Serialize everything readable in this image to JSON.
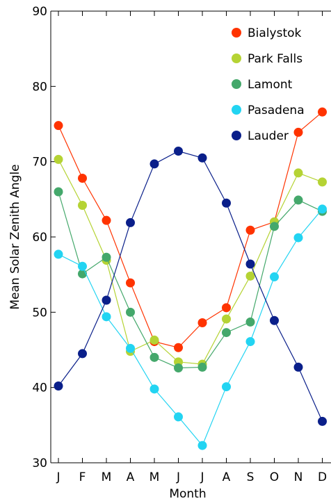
{
  "chart_data": {
    "type": "line",
    "title": "",
    "xlabel": "Month",
    "ylabel": "Mean Solar Zenith Angle",
    "categories": [
      "J",
      "F",
      "M",
      "A",
      "M",
      "J",
      "J",
      "A",
      "S",
      "O",
      "N",
      "D"
    ],
    "ylim": [
      30,
      90
    ],
    "yticks": [
      "30",
      "40",
      "50",
      "60",
      "70",
      "80",
      "90"
    ],
    "grid": false,
    "legend_position": "top-right",
    "series": [
      {
        "name": "Bialystok",
        "color": "#ff3300",
        "values": [
          74.8,
          67.8,
          62.2,
          53.9,
          46.1,
          45.3,
          48.6,
          50.6,
          60.9,
          62.0,
          73.9,
          76.6
        ]
      },
      {
        "name": "Park Falls",
        "color": "#b5d334",
        "values": [
          70.3,
          64.2,
          56.9,
          44.8,
          46.3,
          43.4,
          43.1,
          49.1,
          54.8,
          62.0,
          68.5,
          67.3
        ]
      },
      {
        "name": "Lamont",
        "color": "#44a86b",
        "values": [
          66.0,
          55.1,
          57.3,
          50.0,
          44.0,
          42.6,
          42.7,
          47.3,
          48.7,
          61.4,
          64.9,
          63.4
        ]
      },
      {
        "name": "Pasadena",
        "color": "#22d4f2",
        "values": [
          57.7,
          56.1,
          49.4,
          45.2,
          39.8,
          36.1,
          32.3,
          40.1,
          46.1,
          54.7,
          59.9,
          63.7
        ]
      },
      {
        "name": "Lauder",
        "color": "#0a1f8a",
        "values": [
          40.2,
          44.5,
          51.6,
          61.9,
          69.7,
          71.4,
          70.5,
          64.5,
          56.4,
          48.9,
          42.7,
          35.5
        ]
      }
    ]
  }
}
